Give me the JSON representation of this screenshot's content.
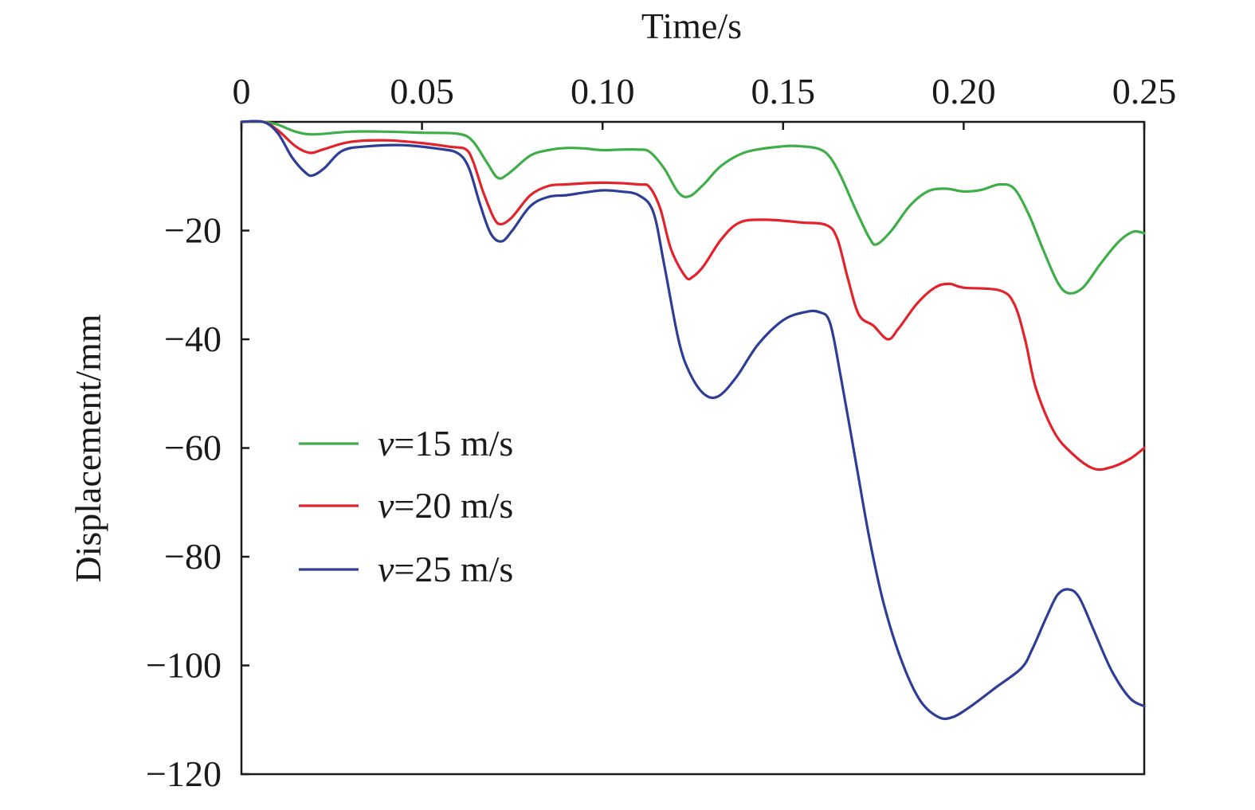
{
  "chart_data": {
    "type": "line",
    "title": "",
    "xlabel": "Time/s",
    "ylabel": "Displacement/mm",
    "xlim": [
      0,
      0.25
    ],
    "ylim": [
      -120,
      0
    ],
    "x_axis_position": "top",
    "x_ticks": [
      0,
      0.05,
      0.1,
      0.15,
      0.2,
      0.25
    ],
    "x_tick_labels": [
      "0",
      "0.05",
      "0.10",
      "0.15",
      "0.20",
      "0.25"
    ],
    "y_ticks": [
      -20,
      -40,
      -60,
      -80,
      -100,
      -120
    ],
    "y_tick_labels": [
      "−20",
      "−40",
      "−60",
      "−80",
      "−100",
      "−120"
    ],
    "grid": false,
    "legend_position": "lower-left",
    "series": [
      {
        "name": "v=15 m/s",
        "name_var": "v",
        "name_rest": "=15 m/s",
        "color": "#3fae49",
        "points": [
          [
            0,
            0
          ],
          [
            0.006,
            0
          ],
          [
            0.01,
            -0.5
          ],
          [
            0.015,
            -1.8
          ],
          [
            0.02,
            -2.3
          ],
          [
            0.03,
            -1.8
          ],
          [
            0.04,
            -1.8
          ],
          [
            0.05,
            -2.0
          ],
          [
            0.06,
            -2.2
          ],
          [
            0.064,
            -3.5
          ],
          [
            0.068,
            -7.5
          ],
          [
            0.071,
            -10.3
          ],
          [
            0.074,
            -9.5
          ],
          [
            0.08,
            -6.2
          ],
          [
            0.085,
            -5.2
          ],
          [
            0.09,
            -4.8
          ],
          [
            0.095,
            -4.9
          ],
          [
            0.1,
            -5.2
          ],
          [
            0.105,
            -5.1
          ],
          [
            0.11,
            -5.1
          ],
          [
            0.113,
            -5.5
          ],
          [
            0.117,
            -8.5
          ],
          [
            0.121,
            -13.0
          ],
          [
            0.124,
            -13.7
          ],
          [
            0.128,
            -11.5
          ],
          [
            0.133,
            -8.0
          ],
          [
            0.14,
            -5.5
          ],
          [
            0.15,
            -4.5
          ],
          [
            0.155,
            -4.5
          ],
          [
            0.16,
            -5.0
          ],
          [
            0.163,
            -6.5
          ],
          [
            0.166,
            -10.0
          ],
          [
            0.17,
            -16.0
          ],
          [
            0.174,
            -21.5
          ],
          [
            0.176,
            -22.5
          ],
          [
            0.18,
            -20.0
          ],
          [
            0.185,
            -15.5
          ],
          [
            0.19,
            -12.8
          ],
          [
            0.195,
            -12.3
          ],
          [
            0.2,
            -12.8
          ],
          [
            0.205,
            -12.5
          ],
          [
            0.21,
            -11.5
          ],
          [
            0.214,
            -12.3
          ],
          [
            0.218,
            -17.0
          ],
          [
            0.222,
            -23.5
          ],
          [
            0.226,
            -29.5
          ],
          [
            0.229,
            -31.5
          ],
          [
            0.233,
            -30.5
          ],
          [
            0.238,
            -26.0
          ],
          [
            0.243,
            -22.0
          ],
          [
            0.247,
            -20.2
          ],
          [
            0.25,
            -20.5
          ]
        ]
      },
      {
        "name": "v=20 m/s",
        "name_var": "v",
        "name_rest": "=20 m/s",
        "color": "#e2232c",
        "points": [
          [
            0,
            0
          ],
          [
            0.006,
            0
          ],
          [
            0.01,
            -1.5
          ],
          [
            0.015,
            -4.5
          ],
          [
            0.019,
            -5.7
          ],
          [
            0.023,
            -5.0
          ],
          [
            0.03,
            -3.7
          ],
          [
            0.04,
            -3.4
          ],
          [
            0.05,
            -3.9
          ],
          [
            0.058,
            -4.6
          ],
          [
            0.062,
            -5.0
          ],
          [
            0.064,
            -7.0
          ],
          [
            0.067,
            -13.0
          ],
          [
            0.07,
            -17.8
          ],
          [
            0.072,
            -18.8
          ],
          [
            0.075,
            -17.5
          ],
          [
            0.08,
            -13.5
          ],
          [
            0.085,
            -11.8
          ],
          [
            0.09,
            -11.5
          ],
          [
            0.1,
            -11.2
          ],
          [
            0.11,
            -11.5
          ],
          [
            0.113,
            -12.0
          ],
          [
            0.116,
            -16.0
          ],
          [
            0.119,
            -23.5
          ],
          [
            0.123,
            -28.5
          ],
          [
            0.125,
            -28.5
          ],
          [
            0.128,
            -26.5
          ],
          [
            0.133,
            -21.5
          ],
          [
            0.138,
            -18.5
          ],
          [
            0.145,
            -18.0
          ],
          [
            0.155,
            -18.5
          ],
          [
            0.162,
            -19.0
          ],
          [
            0.165,
            -21.5
          ],
          [
            0.168,
            -29.0
          ],
          [
            0.171,
            -35.5
          ],
          [
            0.175,
            -37.5
          ],
          [
            0.179,
            -40.0
          ],
          [
            0.182,
            -38.0
          ],
          [
            0.187,
            -33.5
          ],
          [
            0.192,
            -30.5
          ],
          [
            0.196,
            -29.8
          ],
          [
            0.2,
            -30.5
          ],
          [
            0.21,
            -31.0
          ],
          [
            0.214,
            -33.5
          ],
          [
            0.217,
            -40.0
          ],
          [
            0.22,
            -49.0
          ],
          [
            0.225,
            -57.0
          ],
          [
            0.23,
            -61.0
          ],
          [
            0.236,
            -63.8
          ],
          [
            0.241,
            -63.5
          ],
          [
            0.246,
            -62.0
          ],
          [
            0.25,
            -60.0
          ]
        ]
      },
      {
        "name": "v=25 m/s",
        "name_var": "v",
        "name_rest": "=25 m/s",
        "color": "#2e3d95",
        "points": [
          [
            0,
            0
          ],
          [
            0.006,
            0
          ],
          [
            0.01,
            -2.0
          ],
          [
            0.014,
            -6.5
          ],
          [
            0.018,
            -9.5
          ],
          [
            0.02,
            -9.8
          ],
          [
            0.023,
            -8.5
          ],
          [
            0.028,
            -5.3
          ],
          [
            0.035,
            -4.5
          ],
          [
            0.045,
            -4.3
          ],
          [
            0.055,
            -5.0
          ],
          [
            0.06,
            -5.8
          ],
          [
            0.063,
            -8.5
          ],
          [
            0.066,
            -15.0
          ],
          [
            0.069,
            -20.5
          ],
          [
            0.072,
            -22.0
          ],
          [
            0.075,
            -20.0
          ],
          [
            0.08,
            -15.5
          ],
          [
            0.085,
            -13.8
          ],
          [
            0.09,
            -13.5
          ],
          [
            0.095,
            -13.0
          ],
          [
            0.1,
            -12.6
          ],
          [
            0.105,
            -12.8
          ],
          [
            0.11,
            -13.5
          ],
          [
            0.114,
            -16.5
          ],
          [
            0.117,
            -26.0
          ],
          [
            0.121,
            -40.0
          ],
          [
            0.124,
            -46.0
          ],
          [
            0.128,
            -50.0
          ],
          [
            0.132,
            -50.5
          ],
          [
            0.137,
            -47.0
          ],
          [
            0.143,
            -41.0
          ],
          [
            0.15,
            -36.5
          ],
          [
            0.156,
            -35.0
          ],
          [
            0.16,
            -35.0
          ],
          [
            0.163,
            -37.0
          ],
          [
            0.166,
            -47.0
          ],
          [
            0.17,
            -62.0
          ],
          [
            0.174,
            -77.0
          ],
          [
            0.178,
            -89.0
          ],
          [
            0.183,
            -99.5
          ],
          [
            0.188,
            -106.5
          ],
          [
            0.193,
            -109.5
          ],
          [
            0.197,
            -109.5
          ],
          [
            0.202,
            -107.5
          ],
          [
            0.209,
            -104.0
          ],
          [
            0.216,
            -100.5
          ],
          [
            0.219,
            -97.0
          ],
          [
            0.223,
            -91.0
          ],
          [
            0.226,
            -87.0
          ],
          [
            0.229,
            -86.0
          ],
          [
            0.232,
            -87.5
          ],
          [
            0.236,
            -93.5
          ],
          [
            0.241,
            -101.0
          ],
          [
            0.246,
            -106.0
          ],
          [
            0.25,
            -107.5
          ]
        ]
      }
    ]
  }
}
